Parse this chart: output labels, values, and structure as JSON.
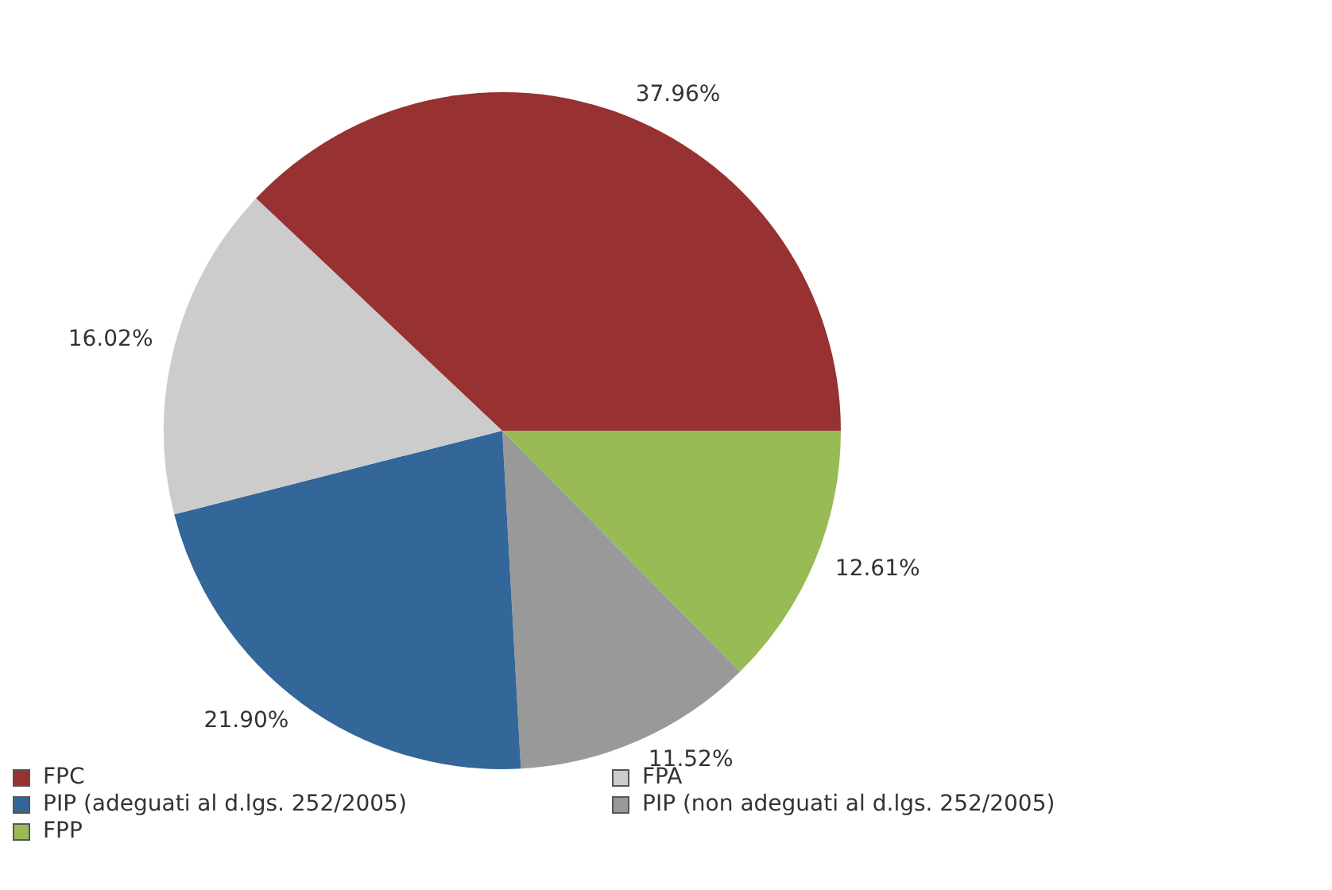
{
  "chart_data": {
    "type": "pie",
    "categories": [
      "FPC",
      "FPA",
      "PIP (adeguati al d.lgs. 252/2005)",
      "PIP (non adeguati al d.lgs. 252/2005)",
      "FPP"
    ],
    "values": [
      37.96,
      16.02,
      21.9,
      11.52,
      12.61
    ],
    "colors": [
      "#983132",
      "#cccccc",
      "#336699",
      "#999999",
      "#99bb55"
    ],
    "value_labels": [
      "37.96%",
      "16.02%",
      "21.90%",
      "11.52%",
      "12.61%"
    ],
    "legend": "bottom left"
  }
}
